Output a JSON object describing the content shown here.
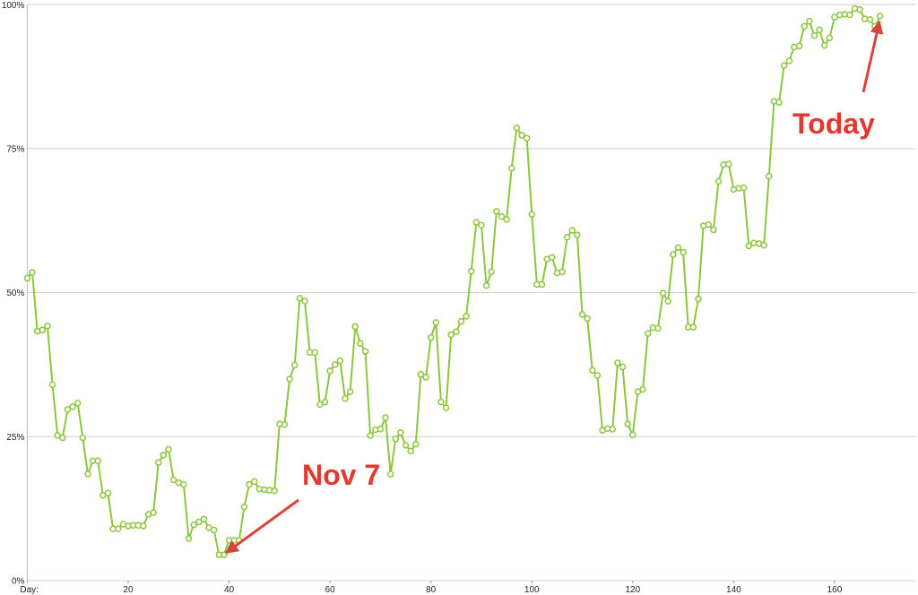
{
  "chart_data": {
    "type": "line",
    "x": [
      0,
      1,
      2,
      3,
      4,
      5,
      6,
      7,
      8,
      9,
      10,
      11,
      12,
      13,
      14,
      15,
      16,
      17,
      18,
      19,
      20,
      21,
      22,
      23,
      24,
      25,
      26,
      27,
      28,
      29,
      30,
      31,
      32,
      33,
      34,
      35,
      36,
      37,
      38,
      39,
      40,
      41,
      42,
      43,
      44,
      45,
      46,
      47,
      48,
      49,
      50,
      51,
      52,
      53,
      54,
      55,
      56,
      57,
      58,
      59,
      60,
      61,
      62,
      63,
      64,
      65,
      66,
      67,
      68,
      69,
      70,
      71,
      72,
      73,
      74,
      75,
      76,
      77,
      78,
      79,
      80,
      81,
      82,
      83,
      84,
      85,
      86,
      87,
      88,
      89,
      90,
      91,
      92,
      93,
      94,
      95,
      96,
      97,
      98,
      99,
      100,
      101,
      102,
      103,
      104,
      105,
      106,
      107,
      108,
      109,
      110,
      111,
      112,
      113,
      114,
      115,
      116,
      117,
      118,
      119,
      120,
      121,
      122,
      123,
      124,
      125,
      126,
      127,
      128,
      129,
      130,
      131,
      132,
      133,
      134,
      135,
      136,
      137,
      138,
      139,
      140,
      141,
      142,
      143,
      144,
      145,
      146,
      147,
      148,
      149,
      150,
      151,
      152,
      153,
      154,
      155,
      156,
      157,
      158,
      159,
      160,
      161,
      162,
      163,
      164,
      165,
      166,
      167,
      168,
      169
    ],
    "values": [
      52.5,
      53.5,
      43.3,
      43.5,
      44.2,
      34,
      25.2,
      24.8,
      29.7,
      30.2,
      30.8,
      24.8,
      18.5,
      20.8,
      20.8,
      14.8,
      15.2,
      9,
      9,
      9.8,
      9.5,
      9.6,
      9.6,
      9.5,
      11.5,
      11.8,
      20.5,
      21.8,
      22.8,
      17.5,
      17,
      16.7,
      7.3,
      9.7,
      10.2,
      10.7,
      9.2,
      8.8,
      4.5,
      4.5,
      7,
      7,
      7,
      12.8,
      16.7,
      17.2,
      15.9,
      15.8,
      15.7,
      15.6,
      27.2,
      27.1,
      35,
      37.4,
      49,
      48.5,
      39.6,
      39.6,
      30.6,
      31,
      36.4,
      37.5,
      38.2,
      31.6,
      32.8,
      44.1,
      41.2,
      39.8,
      25.2,
      26.2,
      26.3,
      28.3,
      18.5,
      24.6,
      25.7,
      23.5,
      22.5,
      23.7,
      35.8,
      35.3,
      42.2,
      44.8,
      31,
      30,
      42.7,
      43.2,
      45,
      45.9,
      53.7,
      62.2,
      61.7,
      51.2,
      53.6,
      64.1,
      63.2,
      62.7,
      71.6,
      78.6,
      77.3,
      76.8,
      63.6,
      51.4,
      51.4,
      55.8,
      56.1,
      53.4,
      53.6,
      59.6,
      60.8,
      60,
      46.2,
      45.5,
      36.5,
      35.6,
      26.1,
      26.4,
      26.3,
      37.8,
      37.1,
      27.2,
      25.3,
      32.8,
      33.2,
      42.9,
      43.9,
      43.8,
      49.9,
      48.5,
      56.6,
      57.8,
      57,
      44,
      44,
      48.9,
      61.6,
      61.8,
      60.9,
      69.3,
      72.2,
      72.3,
      67.9,
      68.1,
      68.2,
      58.1,
      58.6,
      58.5,
      58.2,
      70.2,
      83.2,
      83,
      89.4,
      90.2,
      92.6,
      92.8,
      96.2,
      97.1,
      94.6,
      95.6,
      92.9,
      94.2,
      97.8,
      98.2,
      98.3,
      98.2,
      99.3,
      99.1,
      97.5,
      97.4,
      96.2,
      98
    ],
    "color": "#8cc63e",
    "xlim": [
      0,
      176
    ],
    "xticks": [
      {
        "value": 0,
        "label": "Day:"
      },
      20,
      40,
      60,
      80,
      100,
      120,
      140,
      160
    ],
    "ylim": [
      0,
      100
    ],
    "yticks": [
      {
        "value": 0,
        "label": "0%"
      },
      {
        "value": 25,
        "label": "25%"
      },
      {
        "value": 50,
        "label": "50%"
      },
      {
        "value": 75,
        "label": "75%"
      },
      {
        "value": 100,
        "label": "100%"
      }
    ],
    "grid": true,
    "annotations": [
      {
        "text": "Nov 7"
      },
      {
        "text": "Today"
      }
    ]
  }
}
